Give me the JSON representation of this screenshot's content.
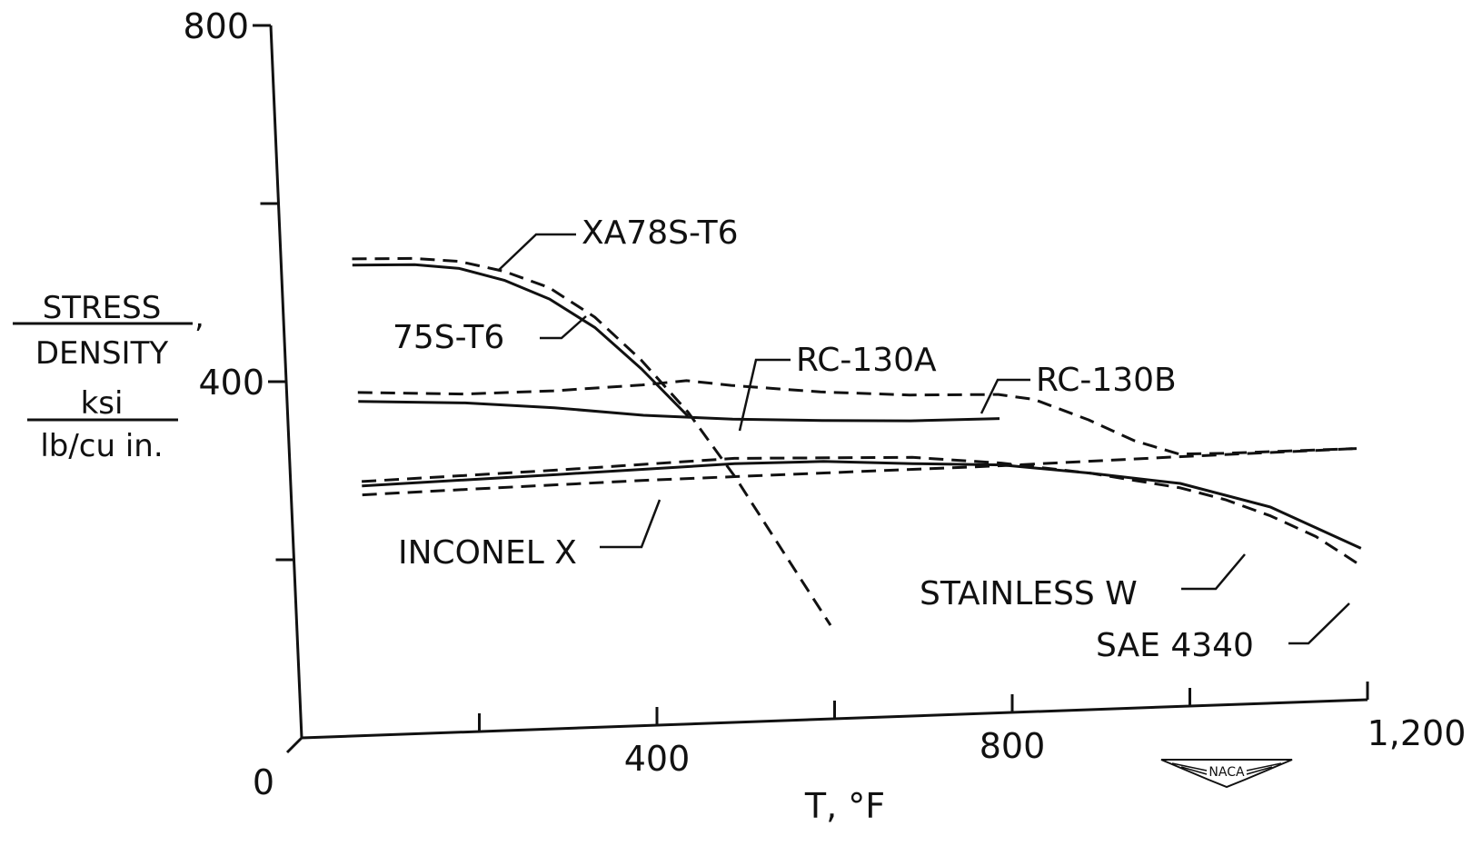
{
  "chart_data": {
    "type": "line",
    "xlabel": "T, °F",
    "ylabel": [
      "STRESS",
      "DENSITY",
      "ksi",
      "lb/cu in."
    ],
    "ylabel_comma": ",",
    "xlim": [
      0,
      1200
    ],
    "ylim": [
      0,
      800
    ],
    "x_ticks": [
      0,
      200,
      400,
      600,
      800,
      1000,
      1200
    ],
    "x_tick_labels": [
      "0",
      "",
      "400",
      "",
      "800",
      "",
      "1,200"
    ],
    "y_ticks": [
      0,
      200,
      400,
      600,
      800
    ],
    "y_tick_labels": [
      "0",
      "",
      "400",
      "",
      "800"
    ],
    "grid": false,
    "series": [
      {
        "name": "XA78S-T6",
        "style": "dashed",
        "x": [
          80,
          150,
          200,
          250,
          300,
          350,
          400,
          450,
          500,
          550,
          600
        ],
        "y": [
          535,
          533,
          528,
          515,
          495,
          460,
          410,
          350,
          275,
          190,
          105
        ]
      },
      {
        "name": "75S-T6",
        "style": "solid",
        "x": [
          80,
          150,
          200,
          250,
          300,
          350,
          400,
          450
        ],
        "y": [
          528,
          526,
          520,
          505,
          482,
          448,
          400,
          345
        ]
      },
      {
        "name": "RC-130A",
        "style": "solid",
        "x": [
          80,
          200,
          300,
          400,
          500,
          600,
          700,
          800
        ],
        "y": [
          375,
          369,
          360,
          348,
          340,
          335,
          331,
          330
        ]
      },
      {
        "name": "RC-130B",
        "style": "dashed",
        "x": [
          80,
          200,
          300,
          400,
          450,
          500,
          600,
          700,
          800,
          840,
          900,
          950,
          1000,
          1050,
          1100,
          1200
        ],
        "y": [
          385,
          379,
          379,
          382,
          385,
          378,
          367,
          360,
          357,
          350,
          325,
          300,
          283,
          282,
          282,
          282
        ]
      },
      {
        "name": "INCONEL X",
        "style": "dashed",
        "x": [
          80,
          200,
          400,
          600,
          800,
          1000,
          1200
        ],
        "y": [
          270,
          272,
          275,
          276,
          277,
          280,
          282
        ]
      },
      {
        "name": "STAINLESS W",
        "style": "solid",
        "x": [
          80,
          300,
          500,
          600,
          700,
          800,
          900,
          1000,
          1100,
          1200
        ],
        "y": [
          280,
          285,
          290,
          289,
          283,
          278,
          265,
          250,
          220,
          170
        ]
      },
      {
        "name": "SAE 4340",
        "style": "dashed",
        "x": [
          80,
          300,
          500,
          700,
          800,
          900,
          1000,
          1050,
          1100,
          1150,
          1200
        ],
        "y": [
          285,
          290,
          296,
          290,
          280,
          265,
          245,
          230,
          210,
          185,
          150
        ]
      }
    ],
    "annotations": [
      "XA78S-T6",
      "75S-T6",
      "RC-130A",
      "RC-130B",
      "INCONEL X",
      "STAINLESS W",
      "SAE 4340"
    ],
    "logo": "NACA"
  }
}
